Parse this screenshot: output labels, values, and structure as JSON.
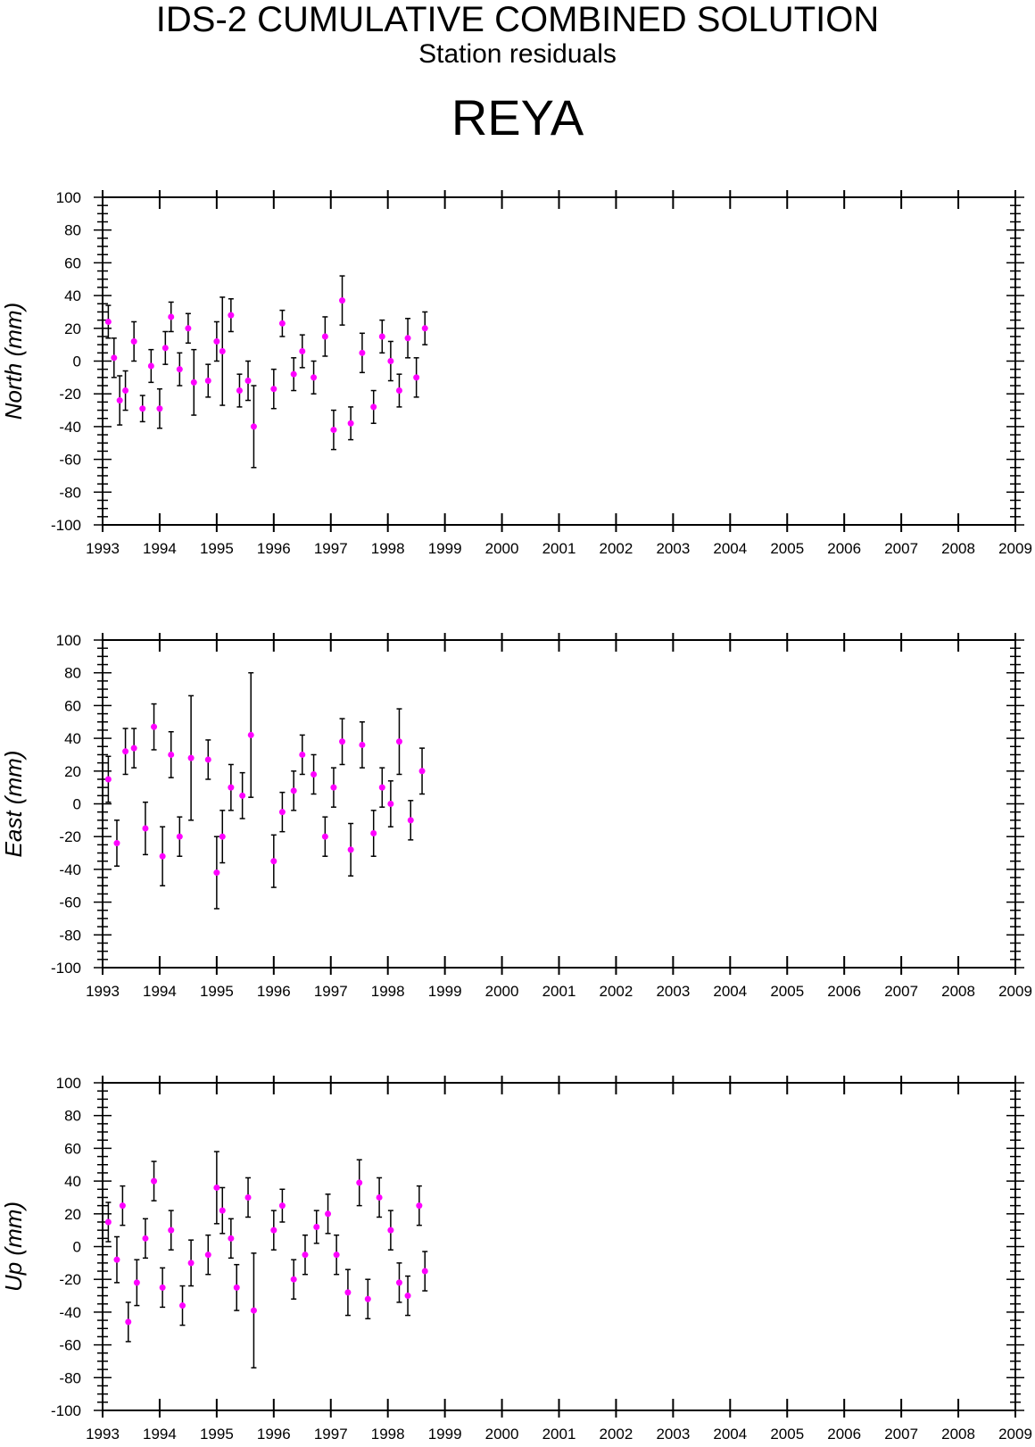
{
  "header": {
    "title": "IDS-2 CUMULATIVE COMBINED SOLUTION",
    "subtitle": "Station residuals",
    "station": "REYA"
  },
  "colors": {
    "marker": "#ff00ff",
    "errorbar": "#000000",
    "frame": "#000000"
  },
  "chart_data": [
    {
      "type": "scatter",
      "panel": "north",
      "ylabel": "North (mm)",
      "xlim": [
        1993,
        2009
      ],
      "ylim": [
        -100,
        100
      ],
      "xticks": [
        "1993",
        "1994",
        "1995",
        "1996",
        "1997",
        "1998",
        "1999",
        "2000",
        "2001",
        "2002",
        "2003",
        "2004",
        "2005",
        "2006",
        "2007",
        "2008",
        "2009"
      ],
      "yticks": [
        "100",
        "80",
        "60",
        "40",
        "20",
        "0",
        "-20",
        "-40",
        "-60",
        "-80",
        "-100"
      ],
      "series": [
        {
          "x": [
            1993.1,
            1993.2,
            1993.3,
            1993.4,
            1993.55,
            1993.7,
            1993.85,
            1994.0,
            1994.1,
            1994.2,
            1994.35,
            1994.5,
            1994.6,
            1994.85,
            1995.0,
            1995.1,
            1995.25,
            1995.4,
            1995.55,
            1995.65,
            1996.0,
            1996.15,
            1996.35,
            1996.5,
            1996.7,
            1996.9,
            1997.05,
            1997.2,
            1997.35,
            1997.55,
            1997.75,
            1997.9,
            1998.05,
            1998.2,
            1998.35,
            1998.5,
            1998.65
          ],
          "y": [
            24,
            2,
            -24,
            -18,
            12,
            -29,
            -3,
            -29,
            8,
            27,
            -5,
            20,
            -13,
            -12,
            12,
            6,
            28,
            -18,
            -12,
            -40,
            -17,
            23,
            -8,
            6,
            -10,
            15,
            -42,
            37,
            -38,
            5,
            -28,
            15,
            0,
            -18,
            14,
            -10,
            20
          ],
          "err": [
            10,
            12,
            15,
            12,
            12,
            8,
            10,
            12,
            10,
            9,
            10,
            9,
            20,
            10,
            12,
            33,
            10,
            10,
            12,
            25,
            12,
            8,
            10,
            10,
            10,
            12,
            12,
            15,
            10,
            12,
            10,
            10,
            12,
            10,
            12,
            12,
            10
          ]
        }
      ]
    },
    {
      "type": "scatter",
      "panel": "east",
      "ylabel": "East (mm)",
      "xlim": [
        1993,
        2009
      ],
      "ylim": [
        -100,
        100
      ],
      "xticks": [
        "1993",
        "1994",
        "1995",
        "1996",
        "1997",
        "1998",
        "1999",
        "2000",
        "2001",
        "2002",
        "2003",
        "2004",
        "2005",
        "2006",
        "2007",
        "2008",
        "2009"
      ],
      "yticks": [
        "100",
        "80",
        "60",
        "40",
        "20",
        "0",
        "-20",
        "-40",
        "-60",
        "-80",
        "-100"
      ],
      "series": [
        {
          "x": [
            1993.1,
            1993.25,
            1993.4,
            1993.55,
            1993.75,
            1993.9,
            1994.05,
            1994.2,
            1994.35,
            1994.55,
            1994.85,
            1995.0,
            1995.1,
            1995.25,
            1995.45,
            1995.6,
            1996.0,
            1996.15,
            1996.35,
            1996.5,
            1996.7,
            1996.9,
            1997.05,
            1997.2,
            1997.35,
            1997.55,
            1997.75,
            1997.9,
            1998.05,
            1998.2,
            1998.4,
            1998.6
          ],
          "y": [
            15,
            -24,
            32,
            34,
            -15,
            47,
            -32,
            30,
            -20,
            28,
            27,
            -42,
            -20,
            10,
            5,
            42,
            -35,
            -5,
            8,
            30,
            18,
            -20,
            10,
            38,
            -28,
            36,
            -18,
            10,
            0,
            38,
            -10,
            20
          ],
          "err": [
            14,
            14,
            14,
            12,
            16,
            14,
            18,
            14,
            12,
            38,
            12,
            22,
            16,
            14,
            14,
            38,
            16,
            12,
            12,
            12,
            12,
            12,
            12,
            14,
            16,
            14,
            14,
            12,
            14,
            20,
            12,
            14
          ]
        }
      ]
    },
    {
      "type": "scatter",
      "panel": "up",
      "ylabel": "Up (mm)",
      "xlim": [
        1993,
        2009
      ],
      "ylim": [
        -100,
        100
      ],
      "xticks": [
        "1993",
        "1994",
        "1995",
        "1996",
        "1997",
        "1998",
        "1999",
        "2000",
        "2001",
        "2002",
        "2003",
        "2004",
        "2005",
        "2006",
        "2007",
        "2008",
        "2009"
      ],
      "yticks": [
        "100",
        "80",
        "60",
        "40",
        "20",
        "0",
        "-20",
        "-40",
        "-60",
        "-80",
        "-100"
      ],
      "series": [
        {
          "x": [
            1993.1,
            1993.25,
            1993.35,
            1993.45,
            1993.6,
            1993.75,
            1993.9,
            1994.05,
            1994.2,
            1994.4,
            1994.55,
            1994.85,
            1995.0,
            1995.1,
            1995.25,
            1995.35,
            1995.55,
            1995.65,
            1996.0,
            1996.15,
            1996.35,
            1996.55,
            1996.75,
            1996.95,
            1997.1,
            1997.3,
            1997.5,
            1997.65,
            1997.85,
            1998.05,
            1998.2,
            1998.35,
            1998.55,
            1998.65
          ],
          "y": [
            15,
            -8,
            25,
            -46,
            -22,
            5,
            40,
            -25,
            10,
            -36,
            -10,
            -5,
            36,
            22,
            5,
            -25,
            30,
            -39,
            10,
            25,
            -20,
            -5,
            12,
            20,
            -5,
            -28,
            39,
            -32,
            30,
            10,
            -22,
            -30,
            25,
            -15
          ],
          "err": [
            12,
            14,
            12,
            12,
            14,
            12,
            12,
            12,
            12,
            12,
            14,
            12,
            22,
            14,
            12,
            14,
            12,
            35,
            12,
            10,
            12,
            12,
            10,
            12,
            12,
            14,
            14,
            12,
            12,
            12,
            12,
            12,
            12,
            12
          ]
        }
      ]
    }
  ]
}
